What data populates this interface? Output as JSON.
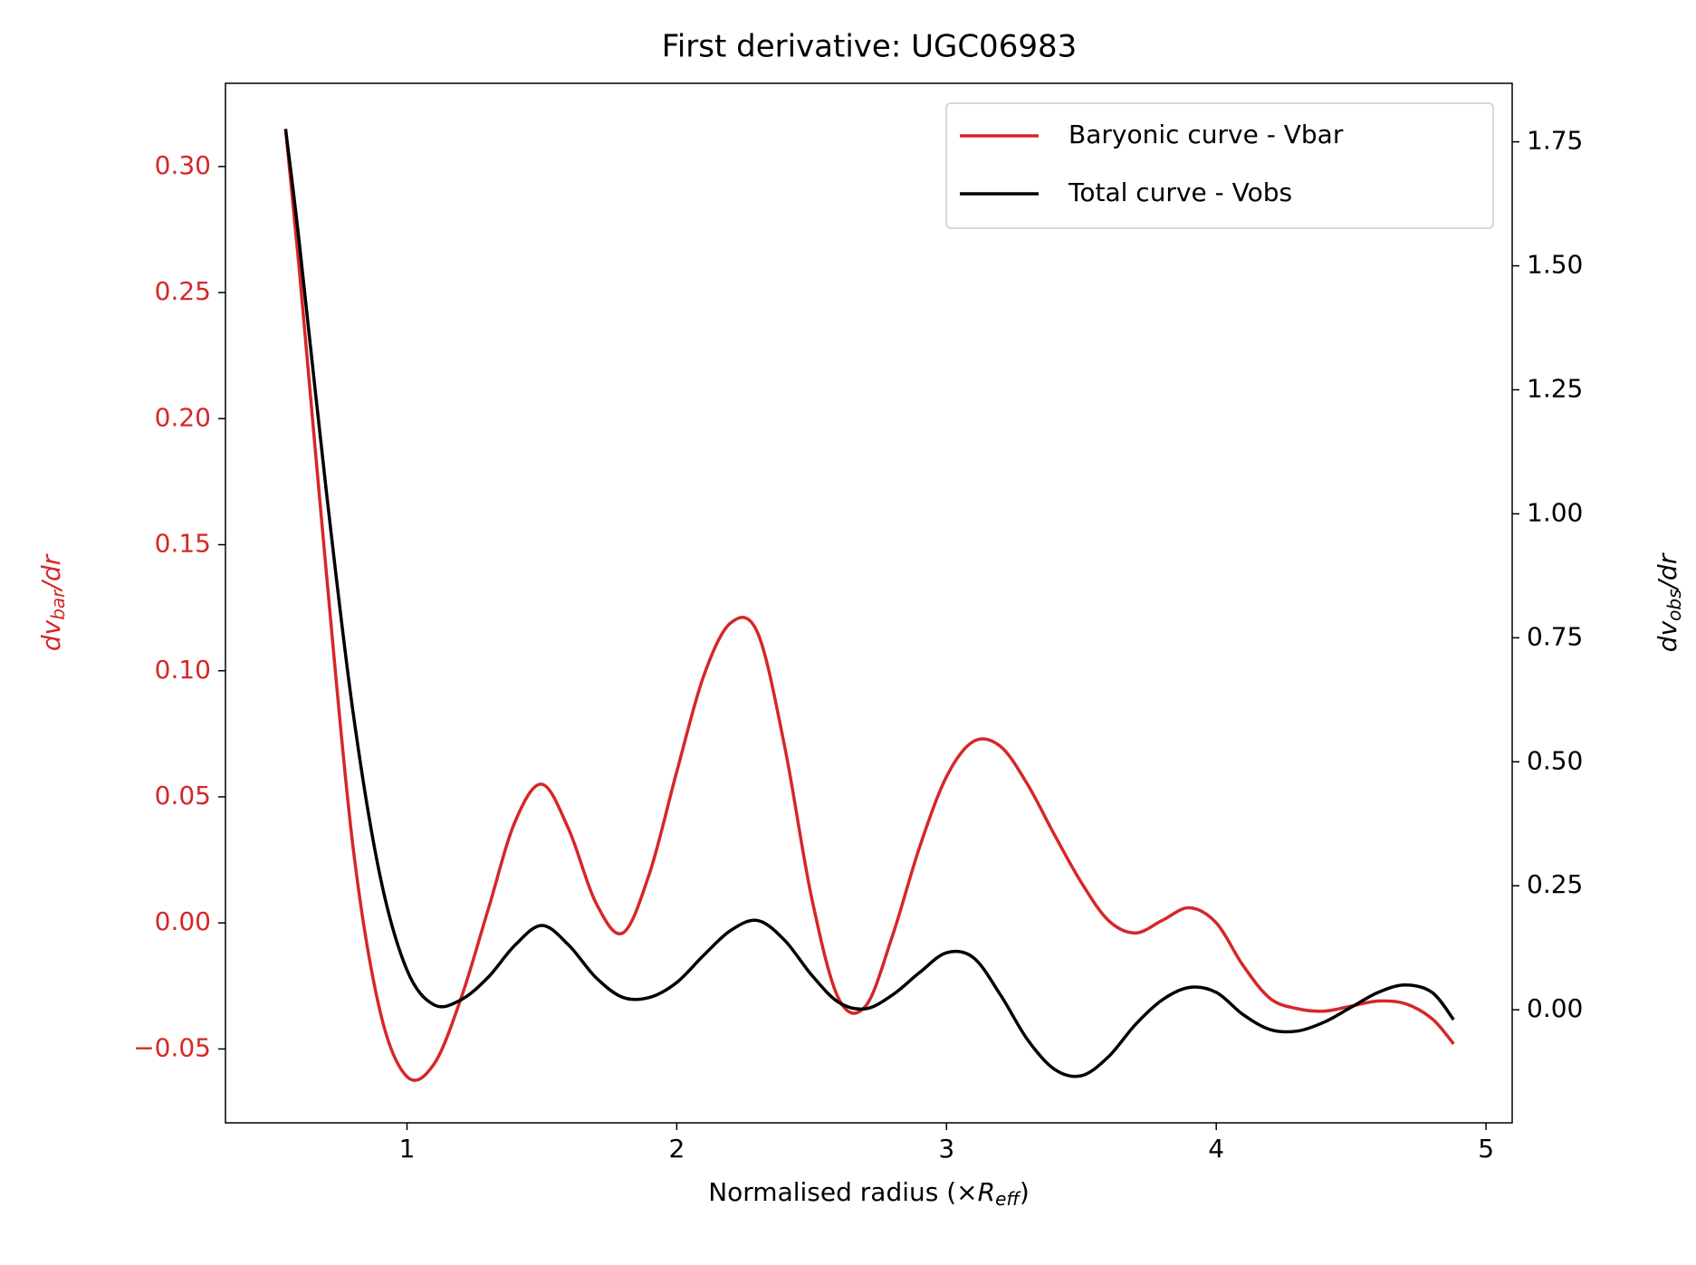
{
  "chart_data": {
    "type": "line",
    "title": "First derivative: UGC06983",
    "xlabel": {
      "text": "Normalised radius (×",
      "symbol": "R",
      "subscript": "eff",
      "close": ")"
    },
    "ylabel": {
      "symbol": "dv",
      "subscript": "bar",
      "rest": "/dr"
    },
    "y2label": {
      "symbol": "dv",
      "subscript": "obs",
      "rest": "/dr"
    },
    "x": [
      0.55,
      0.6,
      0.7,
      0.8,
      0.9,
      1.0,
      1.1,
      1.2,
      1.3,
      1.4,
      1.5,
      1.6,
      1.7,
      1.8,
      1.9,
      2.0,
      2.1,
      2.2,
      2.3,
      2.4,
      2.5,
      2.6,
      2.7,
      2.8,
      2.9,
      3.0,
      3.1,
      3.2,
      3.3,
      3.4,
      3.5,
      3.6,
      3.7,
      3.8,
      3.9,
      4.0,
      4.1,
      4.2,
      4.3,
      4.4,
      4.5,
      4.6,
      4.7,
      4.8,
      4.88
    ],
    "series": [
      {
        "name": "Baryonic curve - Vbar",
        "color": "#d62728",
        "values": [
          0.315,
          0.26,
          0.14,
          0.03,
          -0.035,
          -0.061,
          -0.056,
          -0.03,
          0.005,
          0.04,
          0.055,
          0.037,
          0.008,
          -0.004,
          0.02,
          0.06,
          0.098,
          0.119,
          0.115,
          0.07,
          0.01,
          -0.03,
          -0.033,
          -0.005,
          0.03,
          0.058,
          0.072,
          0.07,
          0.055,
          0.035,
          0.016,
          0.001,
          -0.004,
          0.001,
          0.006,
          0.0,
          -0.017,
          -0.03,
          -0.034,
          -0.035,
          -0.033,
          -0.031,
          -0.032,
          -0.038,
          -0.048
        ]
      },
      {
        "name": "Total curve - Vobs",
        "color": "#000000",
        "axis": "y2",
        "values": [
          1.775,
          1.55,
          1.05,
          0.6,
          0.27,
          0.08,
          0.01,
          0.02,
          0.065,
          0.13,
          0.17,
          0.13,
          0.065,
          0.025,
          0.025,
          0.055,
          0.11,
          0.16,
          0.18,
          0.14,
          0.07,
          0.015,
          0.002,
          0.03,
          0.075,
          0.115,
          0.105,
          0.03,
          -0.06,
          -0.12,
          -0.133,
          -0.095,
          -0.03,
          0.02,
          0.045,
          0.035,
          -0.01,
          -0.04,
          -0.043,
          -0.025,
          0.005,
          0.035,
          0.05,
          0.035,
          -0.02
        ]
      }
    ],
    "xlim": [
      0.327,
      5.097
    ],
    "xticks": [
      1,
      2,
      3,
      4,
      5
    ],
    "ylim": [
      -0.0793,
      0.333
    ],
    "yticks": [
      {
        "value": -0.05,
        "label": "−0.05"
      },
      {
        "value": 0.0,
        "label": "0.00"
      },
      0.05,
      {
        "value": 0.1,
        "label": "0.10"
      },
      0.15,
      {
        "value": 0.2,
        "label": "0.20"
      },
      0.25,
      {
        "value": 0.3,
        "label": "0.30"
      }
    ],
    "y2lim": [
      -0.228,
      1.868
    ],
    "y2ticks": [
      {
        "value": 0.0,
        "label": "0.00"
      },
      0.25,
      {
        "value": 0.5,
        "label": "0.50"
      },
      0.75,
      {
        "value": 1.0,
        "label": "1.00"
      },
      1.25,
      {
        "value": 1.5,
        "label": "1.50"
      },
      1.75
    ],
    "legend": "upper right",
    "grid": false
  }
}
